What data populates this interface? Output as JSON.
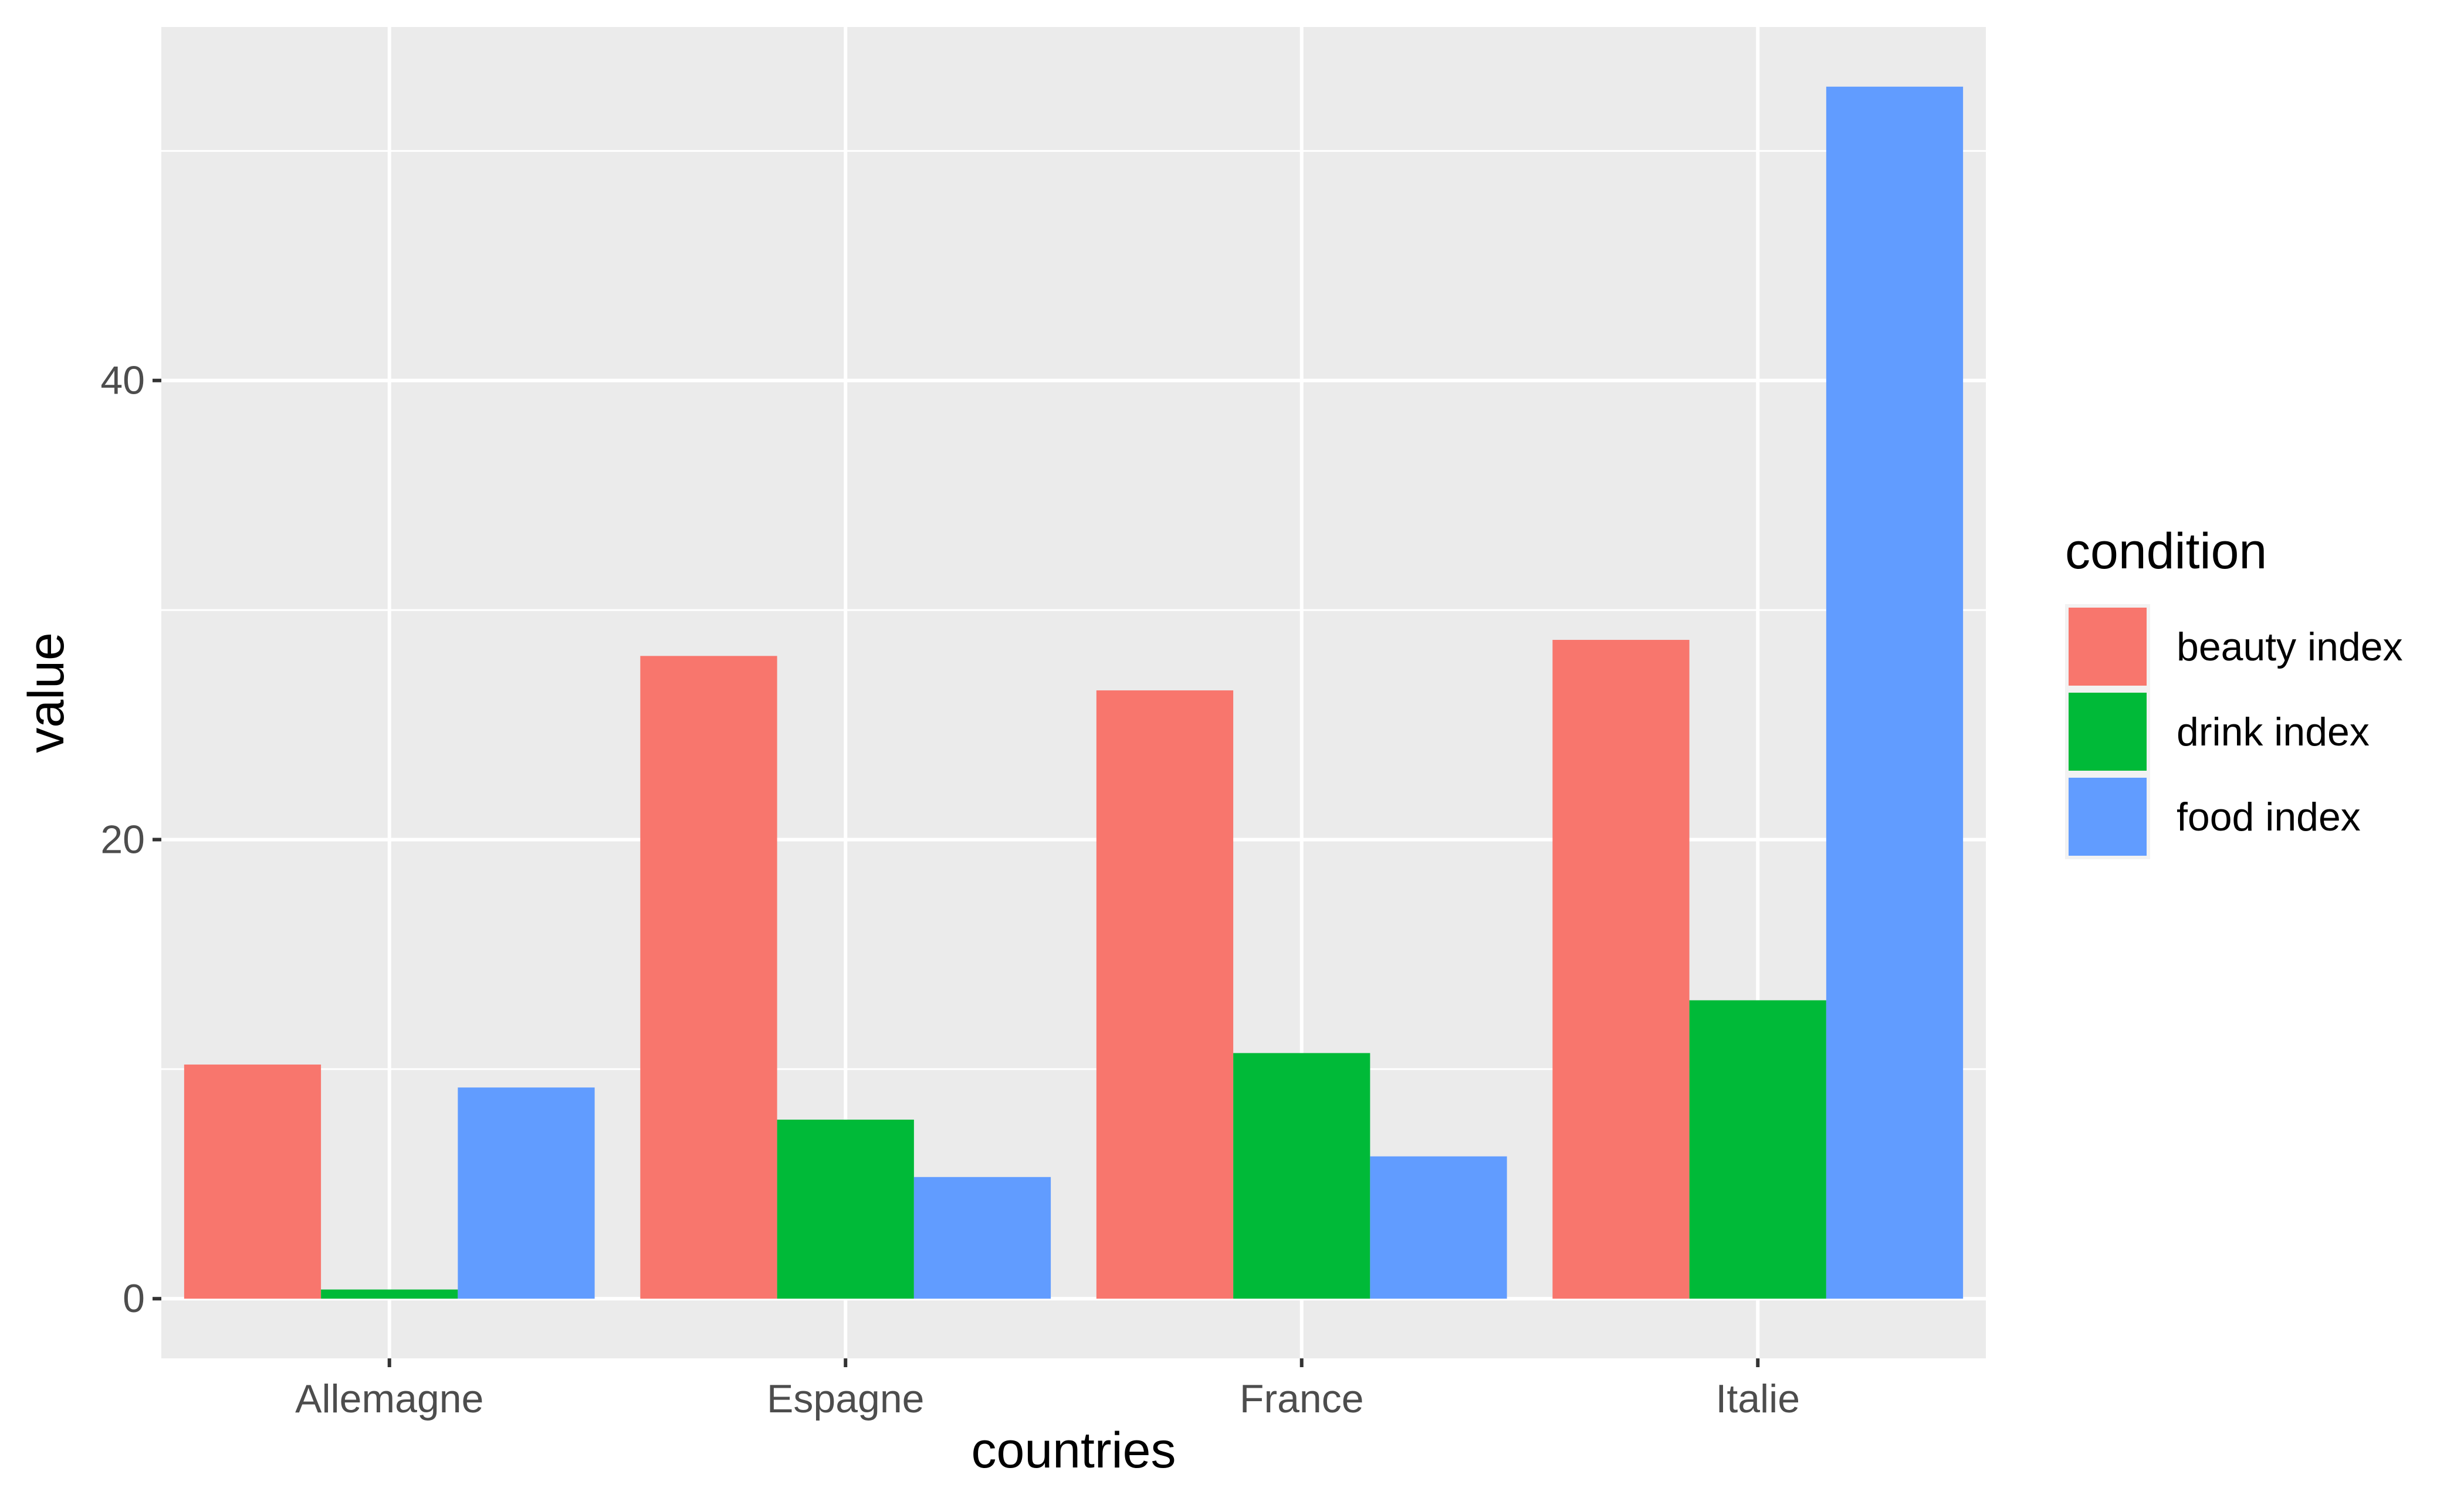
{
  "chart_data": {
    "type": "bar",
    "xlabel": "countries",
    "ylabel": "value",
    "categories": [
      "Allemagne",
      "Espagne",
      "France",
      "Italie"
    ],
    "series": [
      {
        "name": "beauty index",
        "color": "#F8766D",
        "values": [
          10.2,
          28.0,
          26.5,
          28.7
        ]
      },
      {
        "name": "drink index",
        "color": "#00BA38",
        "values": [
          0.4,
          7.8,
          10.7,
          13.0
        ]
      },
      {
        "name": "food index",
        "color": "#619CFF",
        "values": [
          9.2,
          5.3,
          6.2,
          52.8
        ]
      }
    ],
    "ylim": [
      -2.6,
      55.4
    ],
    "yticks": [
      0,
      20,
      40
    ],
    "legend": {
      "title": "condition",
      "position": "right"
    },
    "grid": true,
    "panel_background": "#EBEBEB",
    "grid_color": "#FFFFFF"
  }
}
